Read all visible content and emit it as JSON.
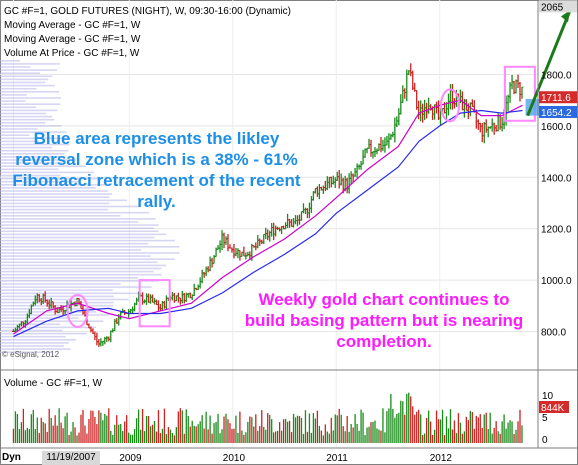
{
  "header": {
    "title_line": "GC #F=1, GOLD FUTURES (NIGHT), W, 09:30-16:00 (Dynamic)",
    "ma1": "Moving Average - GC #F=1, W",
    "ma2": "Moving Average - GC #F=1, W",
    "vap": "Volume At Price - GC #F=1, W"
  },
  "annotations": {
    "blue_note": "Blue area represents the likley reversal zone which is a 38% - 61% Fibonacci retracement of the recent rally.",
    "pink_note": "Weekly gold chart continues to build basing pattern but is nearing completion."
  },
  "watermark": "© eSignal, 2012",
  "volume_panel": {
    "label": "Volume - GC #F=1, W",
    "current_label": "844K",
    "ticks": [
      "10",
      "5",
      "0"
    ]
  },
  "footer": {
    "button": "Dyn",
    "date_box": "11/19/2007"
  },
  "colors": {
    "up_bar": "#1a8c1a",
    "down_bar": "#cc2222",
    "ma_fast": "#cc00cc",
    "ma_slow": "#2a2aee",
    "vap": "#b4b4ea",
    "fib_zone": "#5aa8ea",
    "highlight_box": "#ff88ff",
    "arrow": "#1a7a1a",
    "price_tag_red": "#d42a2a",
    "price_tag_blue": "#2a6ae0"
  },
  "chart_data": {
    "type": "line",
    "title": "GC #F=1, GOLD FUTURES (NIGHT), W, 09:30-16:00 (Dynamic)",
    "x_ticks": [
      "11/19/2007",
      "2009",
      "2010",
      "2011",
      "2012"
    ],
    "x_tick_dates": [
      2007.88,
      2009.0,
      2010.0,
      2011.0,
      2012.0
    ],
    "x_range": [
      2007.75,
      2012.95
    ],
    "y_ticks": [
      800,
      1000,
      1200,
      1400,
      1600,
      1800
    ],
    "y_range": [
      650,
      2090
    ],
    "price_labels": {
      "top": 2065,
      "last": 1711.6,
      "ma": 1654.2
    },
    "price_label_text": {
      "top": "2065",
      "last": "1711.6",
      "ma": "1654.2"
    },
    "series": [
      {
        "name": "GC #F=1",
        "x": [
          2007.88,
          2008.0,
          2008.1,
          2008.2,
          2008.3,
          2008.4,
          2008.5,
          2008.6,
          2008.7,
          2008.8,
          2008.9,
          2009.0,
          2009.1,
          2009.2,
          2009.3,
          2009.4,
          2009.5,
          2009.6,
          2009.7,
          2009.8,
          2009.9,
          2010.0,
          2010.1,
          2010.2,
          2010.3,
          2010.4,
          2010.5,
          2010.6,
          2010.7,
          2010.8,
          2010.9,
          2011.0,
          2011.1,
          2011.2,
          2011.3,
          2011.4,
          2011.5,
          2011.6,
          2011.7,
          2011.8,
          2011.9,
          2012.0,
          2012.1,
          2012.2,
          2012.3,
          2012.4,
          2012.5,
          2012.6,
          2012.7,
          2012.8
        ],
        "values": [
          800,
          850,
          940,
          920,
          880,
          900,
          920,
          830,
          750,
          780,
          860,
          880,
          930,
          920,
          890,
          940,
          930,
          950,
          1010,
          1080,
          1160,
          1120,
          1100,
          1120,
          1160,
          1200,
          1220,
          1220,
          1260,
          1350,
          1370,
          1390,
          1370,
          1420,
          1500,
          1520,
          1530,
          1640,
          1820,
          1640,
          1700,
          1620,
          1720,
          1690,
          1660,
          1580,
          1600,
          1620,
          1760,
          1740
        ]
      },
      {
        "name": "Moving Average - GC #F=1, W",
        "x": [
          2007.88,
          2008.2,
          2008.5,
          2008.8,
          2009.0,
          2009.3,
          2009.6,
          2009.9,
          2010.2,
          2010.5,
          2010.8,
          2011.0,
          2011.3,
          2011.6,
          2011.8,
          2012.0,
          2012.2,
          2012.4,
          2012.6,
          2012.8
        ],
        "values": [
          790,
          880,
          910,
          870,
          850,
          880,
          910,
          1010,
          1090,
          1160,
          1250,
          1320,
          1430,
          1520,
          1650,
          1680,
          1700,
          1640,
          1640,
          1680
        ]
      },
      {
        "name": "Moving Average - GC #F=1, W",
        "x": [
          2007.88,
          2008.2,
          2008.5,
          2008.8,
          2009.0,
          2009.3,
          2009.6,
          2009.9,
          2010.2,
          2010.5,
          2010.8,
          2011.0,
          2011.3,
          2011.6,
          2011.8,
          2012.0,
          2012.2,
          2012.4,
          2012.6,
          2012.8
        ],
        "values": [
          780,
          840,
          880,
          890,
          870,
          870,
          890,
          950,
          1030,
          1100,
          1180,
          1260,
          1350,
          1440,
          1540,
          1600,
          1650,
          1660,
          1650,
          1660
        ]
      }
    ],
    "fib_zone": {
      "y_low": 1640,
      "y_high": 1705
    },
    "arrow": {
      "from": [
        2012.85,
        1640
      ],
      "to": [
        2012.95,
        2065
      ]
    }
  }
}
